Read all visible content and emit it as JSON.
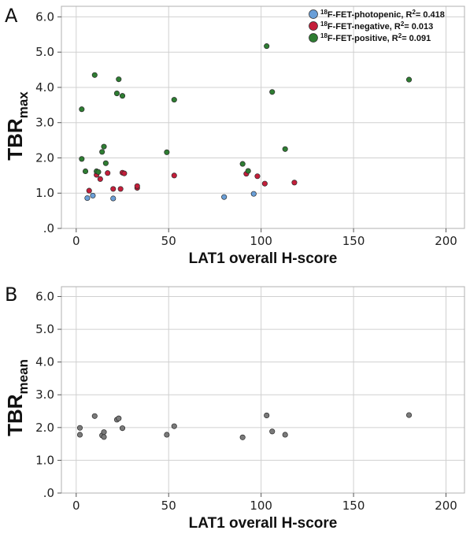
{
  "panels": {
    "a": {
      "label": "A"
    },
    "b": {
      "label": "B"
    }
  },
  "chart_data": [
    {
      "type": "scatter",
      "panel": "A",
      "xlabel": "LAT1 overall H-score",
      "ylabel": {
        "main": "TBR",
        "sub": "max"
      },
      "xlim": [
        -8,
        210
      ],
      "ylim": [
        0,
        6.3
      ],
      "xticks": [
        "0",
        "50",
        "100",
        "150",
        "200"
      ],
      "xtick_values": [
        0,
        50,
        100,
        150,
        200
      ],
      "yticks": [
        ".0",
        "1.0",
        "2.0",
        "3.0",
        "4.0",
        "5.0",
        "6.0"
      ],
      "ytick_values": [
        0,
        1,
        2,
        3,
        4,
        5,
        6
      ],
      "grid": true,
      "legend_position": "top-right",
      "series": [
        {
          "name": "F-FET-photopenic, R",
          "name_sup_left": "18",
          "name_sup_mid": "2",
          "name_suffix": "= 0.418",
          "color": "#6a9fd8",
          "points": [
            [
              6,
              0.86
            ],
            [
              9,
              0.93
            ],
            [
              20,
              0.85
            ],
            [
              80,
              0.89
            ],
            [
              96,
              0.98
            ]
          ]
        },
        {
          "name": "F-FET-negative, R",
          "name_sup_left": "18",
          "name_sup_mid": "2",
          "name_suffix": "= 0.013",
          "color": "#c41e3a",
          "points": [
            [
              7,
              1.07
            ],
            [
              11,
              1.52
            ],
            [
              13,
              1.4
            ],
            [
              17,
              1.57
            ],
            [
              20,
              1.12
            ],
            [
              24,
              1.12
            ],
            [
              25,
              1.58
            ],
            [
              26,
              1.56
            ],
            [
              33,
              1.15
            ],
            [
              33,
              1.2
            ],
            [
              53,
              1.5
            ],
            [
              92,
              1.55
            ],
            [
              98,
              1.48
            ],
            [
              102,
              1.27
            ],
            [
              118,
              1.3
            ]
          ]
        },
        {
          "name": "F-FET-positive, R",
          "name_sup_left": "18",
          "name_sup_mid": "2",
          "name_suffix": "= 0.091",
          "color": "#2e7d32",
          "points": [
            [
              3,
              3.38
            ],
            [
              3,
              1.97
            ],
            [
              5,
              1.62
            ],
            [
              10,
              4.35
            ],
            [
              11,
              1.62
            ],
            [
              12,
              1.6
            ],
            [
              14,
              2.17
            ],
            [
              15,
              2.32
            ],
            [
              16,
              1.85
            ],
            [
              22,
              3.83
            ],
            [
              23,
              4.23
            ],
            [
              25,
              3.76
            ],
            [
              49,
              2.16
            ],
            [
              53,
              3.65
            ],
            [
              90,
              1.83
            ],
            [
              93,
              1.63
            ],
            [
              103,
              5.17
            ],
            [
              106,
              3.87
            ],
            [
              113,
              2.25
            ],
            [
              180,
              4.22
            ]
          ]
        }
      ]
    },
    {
      "type": "scatter",
      "panel": "B",
      "xlabel": "LAT1 overall H-score",
      "ylabel": {
        "main": "TBR",
        "sub": "mean"
      },
      "xlim": [
        -8,
        210
      ],
      "ylim": [
        0,
        6.3
      ],
      "xticks": [
        "0",
        "50",
        "100",
        "150",
        "200"
      ],
      "xtick_values": [
        0,
        50,
        100,
        150,
        200
      ],
      "yticks": [
        ".0",
        "1.0",
        "2.0",
        "3.0",
        "4.0",
        "5.0",
        "6.0"
      ],
      "ytick_values": [
        0,
        1,
        2,
        3,
        4,
        5,
        6
      ],
      "grid": true,
      "series": [
        {
          "color": "#7a7a7a",
          "points": [
            [
              2,
              1.99
            ],
            [
              2,
              1.78
            ],
            [
              10,
              2.35
            ],
            [
              14,
              1.76
            ],
            [
              15,
              1.86
            ],
            [
              15,
              1.71
            ],
            [
              22,
              2.24
            ],
            [
              23,
              2.28
            ],
            [
              25,
              1.98
            ],
            [
              49,
              1.78
            ],
            [
              53,
              2.04
            ],
            [
              90,
              1.7
            ],
            [
              103,
              2.37
            ],
            [
              106,
              1.88
            ],
            [
              113,
              1.78
            ],
            [
              180,
              2.38
            ]
          ]
        }
      ]
    }
  ]
}
